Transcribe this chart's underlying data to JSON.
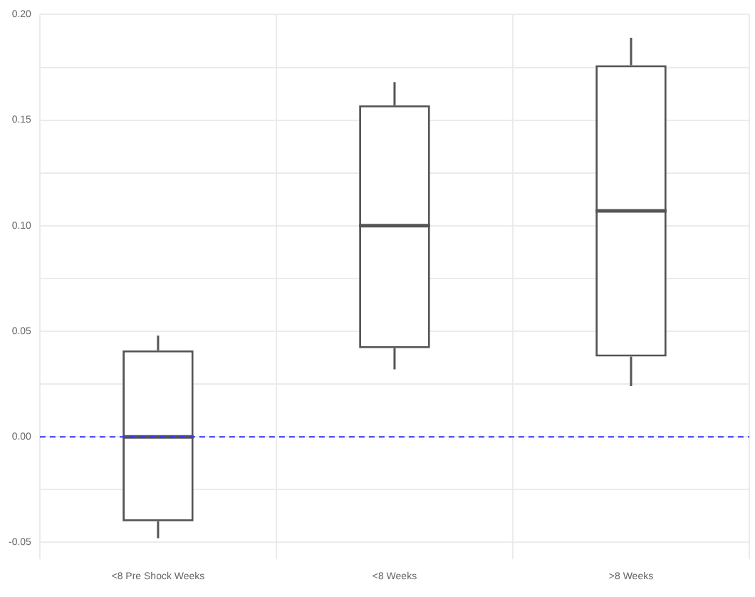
{
  "chart_data": {
    "type": "box",
    "categories": [
      "<8 Pre Shock Weeks",
      "<8 Weeks",
      ">8 Weeks"
    ],
    "boxes": [
      {
        "low": -0.048,
        "q1": -0.04,
        "median": 0.0,
        "q3": 0.041,
        "high": 0.048
      },
      {
        "low": 0.032,
        "q1": 0.042,
        "median": 0.1,
        "q3": 0.157,
        "high": 0.168
      },
      {
        "low": 0.024,
        "q1": 0.038,
        "median": 0.107,
        "q3": 0.176,
        "high": 0.189
      }
    ],
    "color": "#555555",
    "ylim": [
      -0.058,
      0.2
    ],
    "yticks": [
      {
        "value": -0.05,
        "label": "-0.05"
      },
      {
        "value": -0.025,
        "label": null
      },
      {
        "value": 0,
        "label": "0.00"
      },
      {
        "value": 0.025,
        "label": null
      },
      {
        "value": 0.05,
        "label": "0.05"
      },
      {
        "value": 0.075,
        "label": null
      },
      {
        "value": 0.1,
        "label": "0.10"
      },
      {
        "value": 0.125,
        "label": null
      },
      {
        "value": 0.15,
        "label": "0.15"
      },
      {
        "value": 0.175,
        "label": null
      },
      {
        "value": 0.2,
        "label": "0.20"
      }
    ],
    "ref_lines": [
      {
        "axis": "y",
        "value": 0,
        "color": "#3333ff",
        "line_style": "dashed"
      }
    ],
    "grid": true,
    "legend": false
  }
}
